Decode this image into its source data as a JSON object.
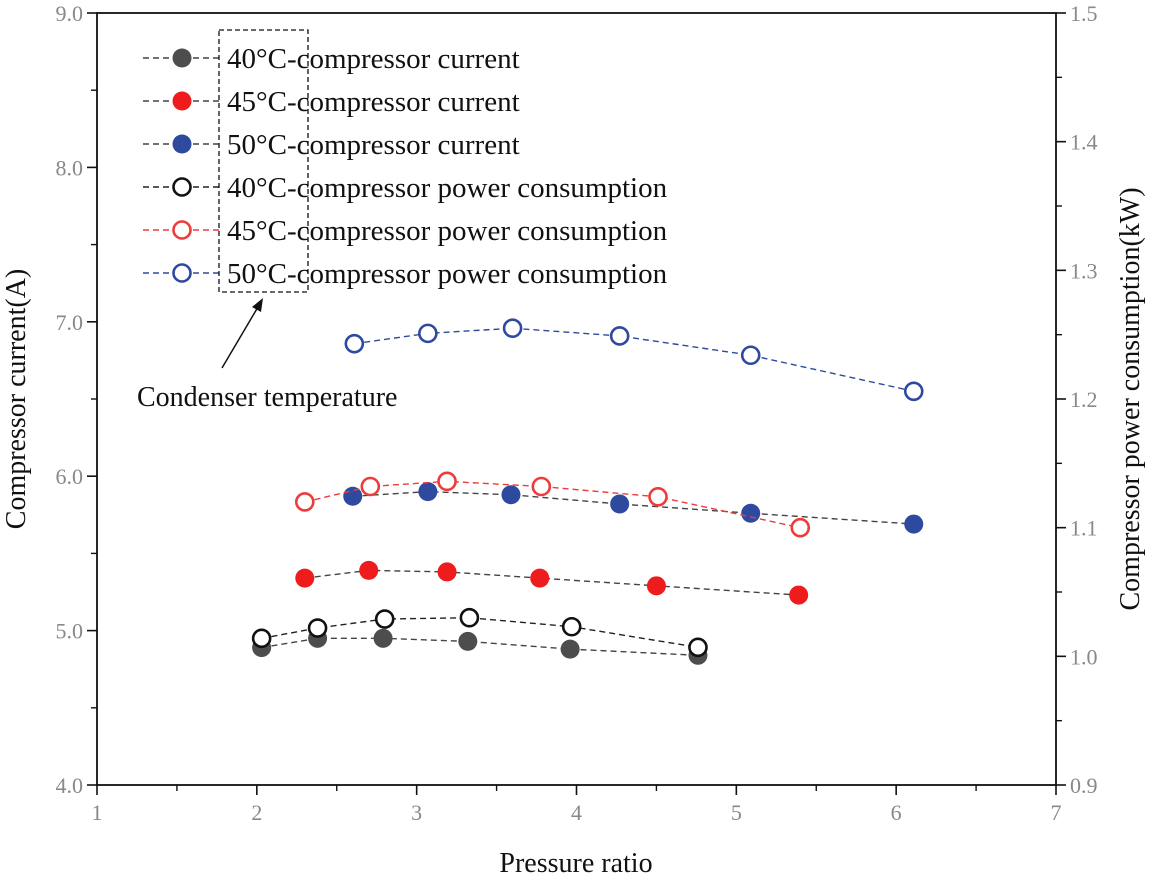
{
  "chart_data": {
    "type": "scatter",
    "x_axis": {
      "label": "Pressure ratio",
      "range": [
        1,
        7
      ],
      "ticks": [
        "1",
        "2",
        "3",
        "4",
        "5",
        "6",
        "7"
      ]
    },
    "y_axis_left": {
      "label": "Compressor current(A)",
      "range": [
        4.0,
        9.0
      ],
      "ticks": [
        "4.0",
        "5.0",
        "6.0",
        "7.0",
        "8.0",
        "9.0"
      ]
    },
    "y_axis_right": {
      "label": "Compressor power consumption(kW)",
      "range": [
        0.9,
        1.5
      ],
      "ticks": [
        "0.9",
        "1.0",
        "1.1",
        "1.2",
        "1.3",
        "1.4",
        "1.5"
      ]
    },
    "annotation": "Condenser temperature",
    "series": [
      {
        "name": "40°C-compressor current",
        "axis": "left",
        "marker": "filled",
        "color": "#4d4d4d",
        "line_color": "#444444",
        "x": [
          2.03,
          2.38,
          2.79,
          3.32,
          3.96,
          4.76
        ],
        "y": [
          4.89,
          4.95,
          4.95,
          4.93,
          4.88,
          4.84
        ]
      },
      {
        "name": "45°C-compressor current",
        "axis": "left",
        "marker": "filled",
        "color": "#ee1c1c",
        "line_color": "#444444",
        "x": [
          2.3,
          2.7,
          3.19,
          3.77,
          4.5,
          5.39
        ],
        "y": [
          5.34,
          5.39,
          5.38,
          5.34,
          5.29,
          5.23
        ]
      },
      {
        "name": "50°C-compressor current",
        "axis": "left",
        "marker": "filled",
        "color": "#2e4a9e",
        "line_color": "#444444",
        "x": [
          2.6,
          3.07,
          3.59,
          4.27,
          5.09,
          6.11
        ],
        "y": [
          5.87,
          5.9,
          5.88,
          5.82,
          5.76,
          5.69
        ]
      },
      {
        "name": "40°C-compressor power consumption",
        "axis": "right",
        "marker": "open",
        "color": "#111111",
        "line_color": "#222222",
        "x": [
          2.03,
          2.38,
          2.8,
          3.33,
          3.97,
          4.76
        ],
        "y": [
          1.014,
          1.022,
          1.029,
          1.03,
          1.023,
          1.007
        ]
      },
      {
        "name": "45°C-compressor power consumption",
        "axis": "right",
        "marker": "open",
        "color": "#ee3b3b",
        "line_color": "#ee3b3b",
        "x": [
          2.3,
          2.71,
          3.19,
          3.78,
          4.51,
          5.4
        ],
        "y": [
          1.12,
          1.132,
          1.136,
          1.132,
          1.124,
          1.1
        ]
      },
      {
        "name": "50°C-compressor power consumption",
        "axis": "right",
        "marker": "open",
        "color": "#2e4a9e",
        "line_color": "#2e4a9e",
        "x": [
          2.61,
          3.07,
          3.6,
          4.27,
          5.09,
          6.11
        ],
        "y": [
          1.243,
          1.251,
          1.255,
          1.249,
          1.234,
          1.206
        ]
      }
    ]
  }
}
